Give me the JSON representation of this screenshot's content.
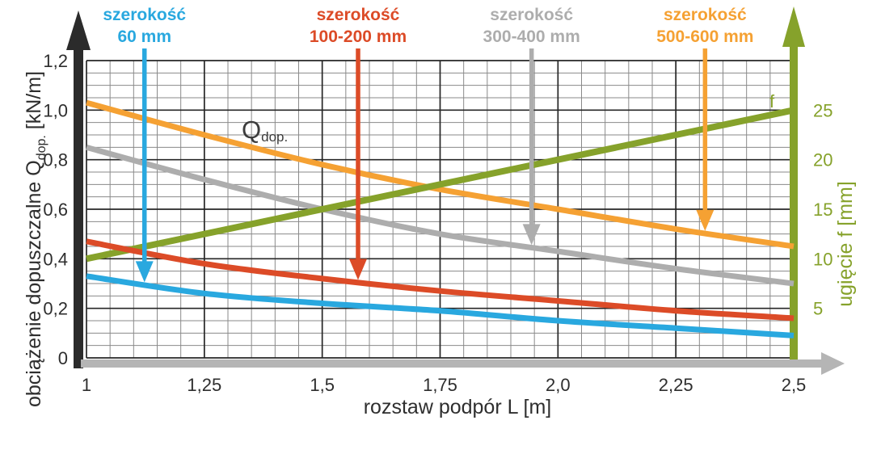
{
  "chart_data": {
    "type": "line",
    "xlabel": "rozstaw podpór L [m]",
    "ylabel_left_parts": {
      "main": "obciążenie dopuszczalne Q",
      "sub": "dop.",
      "unit": " [kN/m]"
    },
    "ylabel_right": "ugięcie f [mm]",
    "annotations": {
      "q_main": "Q",
      "q_sub": "dop.",
      "f": "f"
    },
    "x": [
      1,
      1.25,
      1.5,
      1.75,
      2.0,
      2.25,
      2.5
    ],
    "x_tick_labels": [
      "1",
      "1,25",
      "1,5",
      "1,75",
      "2,0",
      "2,25",
      "2,5"
    ],
    "xlim": [
      1,
      2.5
    ],
    "x_minor_step": 0.05,
    "left_axis": {
      "lim": [
        0,
        1.2
      ],
      "unit": "kN/m",
      "minor_step": 0.05,
      "tick_values": [
        0,
        0.2,
        0.4,
        0.6,
        0.8,
        1.0,
        1.2
      ],
      "tick_labels": [
        "0",
        "0,2",
        "0,4",
        "0,6",
        "0,8",
        "1,0",
        "1,2"
      ]
    },
    "right_axis": {
      "lim": [
        0,
        30
      ],
      "unit": "mm",
      "color": "#86A22B",
      "tick_values": [
        5,
        10,
        15,
        20,
        25
      ],
      "tick_labels": [
        "5",
        "10",
        "15",
        "20",
        "25"
      ]
    },
    "grid": {
      "minor_color": "#8A8A8A",
      "major_color": "#262626"
    },
    "series": [
      {
        "id": "szerokosc-300-400",
        "legend_line1": "szerokość",
        "legend_line2": "300-400 mm",
        "color": "#ADADAD",
        "axis": "left",
        "width": 7,
        "values": [
          0.85,
          0.72,
          0.6,
          0.5,
          0.43,
          0.36,
          0.3
        ]
      },
      {
        "id": "szerokosc-500-600",
        "legend_line1": "szerokość",
        "legend_line2": "500-600 mm",
        "color": "#F5A133",
        "axis": "left",
        "width": 7,
        "values": [
          1.03,
          0.9,
          0.78,
          0.68,
          0.6,
          0.52,
          0.45
        ]
      },
      {
        "id": "ugiecie-f",
        "label": "f",
        "color": "#86A22B",
        "axis": "right",
        "width": 8,
        "straight": true,
        "values": [
          10,
          12.5,
          15,
          17.5,
          20,
          22.5,
          25
        ]
      },
      {
        "id": "szerokosc-100-200",
        "legend_line1": "szerokość",
        "legend_line2": "100-200 mm",
        "color": "#DC4B27",
        "axis": "left",
        "width": 7,
        "values": [
          0.47,
          0.38,
          0.32,
          0.27,
          0.23,
          0.19,
          0.16
        ]
      },
      {
        "id": "szerokosc-60",
        "legend_line1": "szerokość",
        "legend_line2": "60 mm",
        "color": "#29A8DF",
        "axis": "left",
        "width": 7,
        "values": [
          0.33,
          0.26,
          0.22,
          0.19,
          0.15,
          0.12,
          0.09
        ]
      }
    ],
    "legend_pointers": [
      {
        "series": "szerokosc-60",
        "arrow_x": 1.123
      },
      {
        "series": "szerokosc-100-200",
        "arrow_x": 1.576
      },
      {
        "series": "szerokosc-300-400",
        "arrow_x": 1.944
      },
      {
        "series": "szerokosc-500-600",
        "arrow_x": 2.312
      }
    ],
    "axis_colors": {
      "left_axis_arrow": "#2B2B2B",
      "bottom_axis_arrow": "#B5B5B5",
      "right_axis_arrow": "#86A22B"
    }
  }
}
